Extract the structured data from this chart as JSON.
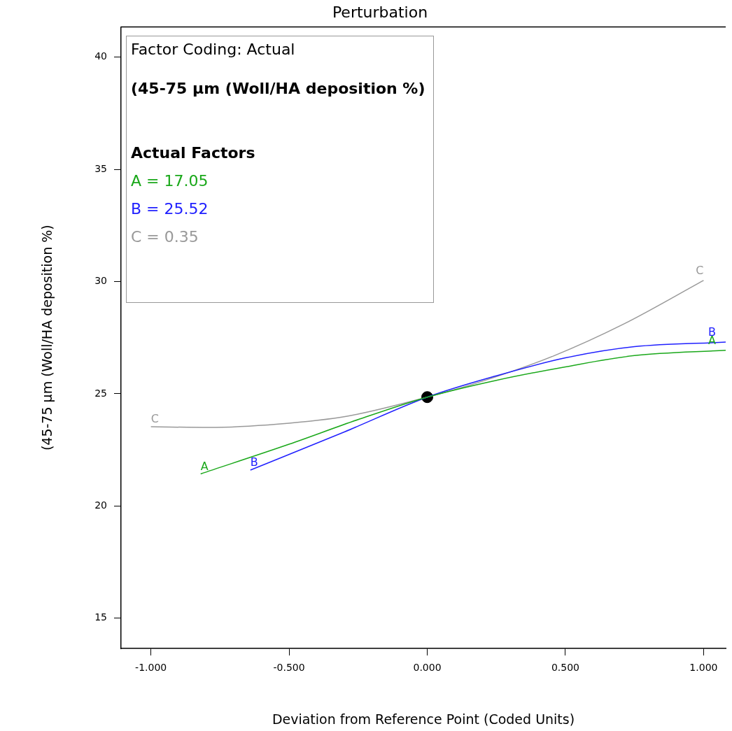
{
  "chart_data": {
    "type": "line",
    "title": "Perturbation",
    "xlabel": "Deviation from Reference Point (Coded Units)",
    "ylabel": "(45-75 µm (Woll/HA deposition %)",
    "xlim": [
      -1.108,
      1.08
    ],
    "ylim": [
      13.65,
      41.35
    ],
    "xticks": [
      {
        "value": -1,
        "label": "-1.000"
      },
      {
        "value": -0.5,
        "label": "-0.500"
      },
      {
        "value": 0,
        "label": "0.000"
      },
      {
        "value": 0.5,
        "label": "0.500"
      },
      {
        "value": 1,
        "label": "1.000"
      }
    ],
    "yticks": [
      15,
      20,
      25,
      30,
      35,
      40
    ],
    "grid": false,
    "legend": false,
    "marker": "none",
    "line_style": "solid",
    "series": [
      {
        "name": "A",
        "color": "#1aa81a",
        "x": [
          -0.82,
          -0.5,
          -0.25,
          0,
          0.25,
          0.5,
          0.75,
          1.08
        ],
        "values": [
          21.43,
          22.75,
          23.85,
          24.85,
          25.6,
          26.2,
          26.7,
          26.94
        ]
      },
      {
        "name": "B",
        "color": "#2020ff",
        "x": [
          -0.64,
          -0.3,
          0,
          0.25,
          0.5,
          0.75,
          1.08
        ],
        "values": [
          21.6,
          23.3,
          24.85,
          25.8,
          26.6,
          27.1,
          27.3
        ]
      },
      {
        "name": "C",
        "color": "#999999",
        "x": [
          -1,
          -0.79,
          -0.54,
          -0.29,
          0,
          0.21,
          0.46,
          0.71,
          1
        ],
        "values": [
          23.53,
          23.5,
          23.65,
          24.0,
          24.85,
          25.6,
          26.7,
          28.1,
          30.05
        ]
      },
      {
        "type": "scatter",
        "color": "#000000",
        "marker": "circle",
        "x": [
          0
        ],
        "values": [
          24.85
        ]
      }
    ],
    "annotations": [
      "Factor Coding: Actual",
      "(45-75 µm (Woll/HA deposition %)",
      "Actual Factors",
      "A = 17.05",
      "B = 25.52",
      "C = 0.35"
    ]
  }
}
